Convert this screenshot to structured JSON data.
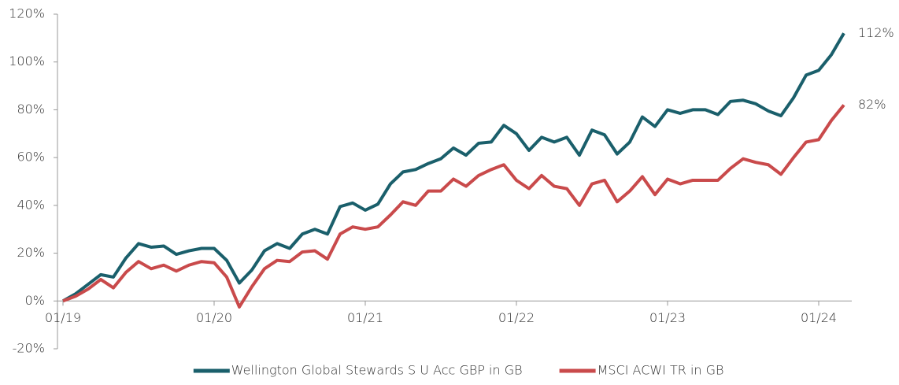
{
  "chart_data": {
    "type": "line",
    "categories": [
      "01/19",
      null,
      null,
      null,
      null,
      null,
      null,
      null,
      null,
      null,
      null,
      null,
      "01/20",
      null,
      null,
      null,
      null,
      null,
      null,
      null,
      null,
      null,
      null,
      null,
      "01/21",
      null,
      null,
      null,
      null,
      null,
      null,
      null,
      null,
      null,
      null,
      null,
      "01/22",
      null,
      null,
      null,
      null,
      null,
      null,
      null,
      null,
      null,
      null,
      null,
      "01/23",
      null,
      null,
      null,
      null,
      null,
      null,
      null,
      null,
      null,
      null,
      null,
      "01/24",
      null,
      null
    ],
    "series": [
      {
        "name": "Wellington Global Stewards S U Acc GBP in GB",
        "color": "#1a5f6b",
        "values": [
          0,
          3,
          7,
          11,
          10,
          18,
          24,
          22.5,
          23,
          19.5,
          21,
          22,
          22,
          17,
          7.5,
          13,
          21,
          24,
          22,
          28,
          30,
          28,
          39.5,
          41,
          38,
          40.5,
          49,
          54,
          55,
          57.5,
          59.5,
          64,
          61,
          66,
          66.5,
          73.5,
          70,
          63,
          68.5,
          66.5,
          68.5,
          61,
          71.5,
          69.5,
          61.5,
          66.5,
          77,
          73,
          80,
          78.5,
          80,
          80,
          78,
          83.5,
          84,
          82.5,
          79.5,
          77.5,
          85,
          94.5,
          96.5,
          103,
          112
        ],
        "value_labels": [
          null,
          null,
          null,
          null,
          null,
          null,
          null,
          null,
          null,
          null,
          null,
          null,
          null,
          null,
          null,
          null,
          null,
          null,
          null,
          null,
          null,
          null,
          null,
          null,
          null,
          null,
          null,
          null,
          null,
          null,
          null,
          null,
          null,
          null,
          null,
          null,
          null,
          null,
          null,
          null,
          null,
          null,
          null,
          null,
          null,
          null,
          null,
          null,
          null,
          null,
          null,
          null,
          null,
          null,
          null,
          null,
          null,
          null,
          null,
          null,
          null,
          null,
          "112%"
        ]
      },
      {
        "name": "MSCI ACWI TR in GB",
        "color": "#c94a4b",
        "values": [
          0,
          2,
          5,
          9,
          5.5,
          12,
          16.5,
          13.5,
          15,
          12.5,
          15,
          16.5,
          16,
          10,
          -2.5,
          6,
          13.5,
          17,
          16.5,
          20.5,
          21,
          17.5,
          28,
          31,
          30,
          31,
          36,
          41.5,
          40,
          46,
          46,
          51,
          48,
          52.5,
          55,
          57,
          50.5,
          47,
          52.5,
          48,
          47,
          40,
          49,
          50.5,
          41.5,
          46,
          52,
          44.5,
          51,
          49,
          50.5,
          50.5,
          50.5,
          55.5,
          59.5,
          58,
          57,
          53,
          60,
          66.5,
          67.5,
          75.5,
          82
        ],
        "value_labels": [
          null,
          null,
          null,
          null,
          null,
          null,
          null,
          null,
          null,
          null,
          null,
          null,
          null,
          null,
          null,
          null,
          null,
          null,
          null,
          null,
          null,
          null,
          null,
          null,
          null,
          null,
          null,
          null,
          null,
          null,
          null,
          null,
          null,
          null,
          null,
          null,
          null,
          null,
          null,
          null,
          null,
          null,
          null,
          null,
          null,
          null,
          null,
          null,
          null,
          null,
          null,
          null,
          null,
          null,
          null,
          null,
          null,
          null,
          null,
          null,
          null,
          null,
          "82%"
        ]
      }
    ],
    "ylim": [
      -20,
      120
    ],
    "yticks": [
      {
        "value": -20,
        "label": "-20%"
      },
      {
        "value": 0,
        "label": "0%"
      },
      {
        "value": 20,
        "label": "20%"
      },
      {
        "value": 40,
        "label": "40%"
      },
      {
        "value": 60,
        "label": "60%"
      },
      {
        "value": 80,
        "label": "80%"
      },
      {
        "value": 100,
        "label": "100%"
      },
      {
        "value": 120,
        "label": "120%"
      }
    ],
    "grid": false,
    "legend": "bottom"
  }
}
